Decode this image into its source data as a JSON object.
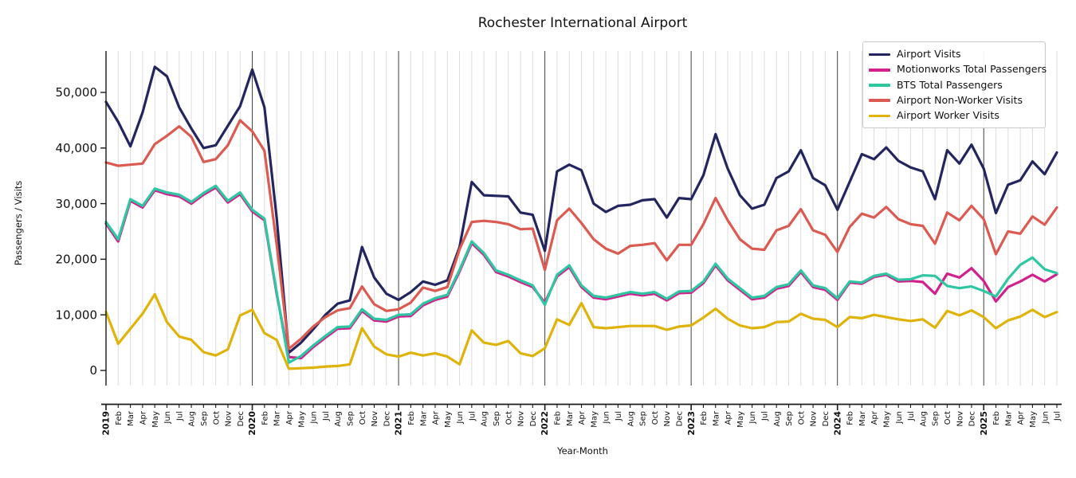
{
  "title": "Rochester International Airport",
  "axes": {
    "xlabel": "Year-Month",
    "ylabel": "Passengers / Visits",
    "y_tick_labels": [
      "0",
      "10,000",
      "20,000",
      "30,000",
      "40,000",
      "50,000"
    ],
    "y_tick_values": [
      0,
      10000,
      20000,
      30000,
      40000,
      50000
    ]
  },
  "chart_data": {
    "type": "line",
    "title": "Rochester International Airport",
    "xlabel": "Year-Month",
    "ylabel": "Passengers / Visits",
    "ylim": [
      0,
      57000
    ],
    "grid": {
      "vertical_month_lines": true,
      "year_boundary_lines": true,
      "horizontal_lines": false
    },
    "legend_position": "upper right",
    "x_labels": [
      "2019",
      "Feb",
      "Mar",
      "Apr",
      "May",
      "Jun",
      "Jul",
      "Aug",
      "Sep",
      "Oct",
      "Nov",
      "Dec",
      "2020",
      "Feb",
      "Mar",
      "Apr",
      "May",
      "Jun",
      "Jul",
      "Aug",
      "Sep",
      "Oct",
      "Nov",
      "Dec",
      "2021",
      "Feb",
      "Mar",
      "Apr",
      "May",
      "Jun",
      "Jul",
      "Aug",
      "Sep",
      "Oct",
      "Nov",
      "Dec",
      "2022",
      "Feb",
      "Mar",
      "Apr",
      "May",
      "Jun",
      "Jul",
      "Aug",
      "Sep",
      "Oct",
      "Nov",
      "Dec",
      "2023",
      "Feb",
      "Mar",
      "Apr",
      "May",
      "Jun",
      "Jul",
      "Aug",
      "Sep",
      "Oct",
      "Nov",
      "Dec",
      "2024",
      "Feb",
      "Mar",
      "Apr",
      "May",
      "Jun",
      "Jul",
      "Aug",
      "Sep",
      "Oct",
      "Nov",
      "Dec",
      "2025",
      "Feb",
      "Mar",
      "Apr",
      "May",
      "Jun",
      "Jul"
    ],
    "series": [
      {
        "name": "Airport Visits",
        "color": "#23265e",
        "values": [
          48300,
          44700,
          40300,
          46400,
          54600,
          52900,
          47300,
          43500,
          40000,
          40500,
          44000,
          47500,
          54100,
          47300,
          27500,
          3200,
          5000,
          7400,
          10000,
          12000,
          12600,
          22200,
          16700,
          13800,
          12700,
          14100,
          16000,
          15400,
          16200,
          22200,
          33900,
          31500,
          31400,
          31300,
          28400,
          28000,
          21500,
          35800,
          37000,
          36000,
          30000,
          28500,
          29600,
          29800,
          30600,
          30800,
          27500,
          31000,
          30800,
          35100,
          42500,
          36300,
          31500,
          29100,
          29800,
          34600,
          35800,
          39600,
          34600,
          33300,
          28900,
          33900,
          38900,
          38000,
          40100,
          37700,
          36500,
          35800,
          30800,
          39600,
          37200,
          40600,
          36300,
          28300,
          33400,
          34200,
          37600,
          35300,
          39200
        ]
      },
      {
        "name": "Motionworks Total Passengers",
        "color": "#d1218f",
        "values": [
          26400,
          23200,
          30500,
          29300,
          32400,
          31700,
          31300,
          30000,
          31600,
          32900,
          30200,
          31700,
          28600,
          27000,
          13800,
          2400,
          2200,
          4200,
          5900,
          7500,
          7600,
          10700,
          9000,
          8800,
          9700,
          9800,
          11700,
          12700,
          13300,
          17800,
          22900,
          20800,
          17700,
          16900,
          15900,
          15000,
          12200,
          16900,
          18600,
          15000,
          13100,
          12800,
          13300,
          13800,
          13500,
          13800,
          12600,
          13900,
          14000,
          15700,
          18900,
          16200,
          14500,
          12800,
          13100,
          14700,
          15200,
          17700,
          15000,
          14500,
          12700,
          15800,
          15600,
          16800,
          17200,
          16000,
          16100,
          15900,
          13800,
          17400,
          16700,
          18400,
          16100,
          12400,
          15000,
          16000,
          17200,
          16000,
          17300
        ]
      },
      {
        "name": "BTS Total Passengers",
        "color": "#2fc6a2",
        "values": [
          26700,
          23600,
          30800,
          29600,
          32700,
          32000,
          31600,
          30300,
          31900,
          33200,
          30500,
          32000,
          28900,
          27300,
          14100,
          1400,
          2600,
          4500,
          6200,
          7800,
          7900,
          11000,
          9300,
          9100,
          10000,
          10100,
          12000,
          13000,
          13600,
          18100,
          23200,
          21100,
          18000,
          17200,
          16200,
          15300,
          11800,
          17200,
          18900,
          15300,
          13400,
          13100,
          13600,
          14100,
          13800,
          14100,
          12900,
          14200,
          14300,
          16000,
          19200,
          16500,
          14800,
          13100,
          13400,
          15000,
          15500,
          18000,
          15300,
          14800,
          13000,
          16000,
          15800,
          17000,
          17400,
          16300,
          16400,
          17100,
          17000,
          15200,
          14800,
          15100,
          14300,
          13300,
          16500,
          19000,
          20300,
          18200,
          17500
        ]
      },
      {
        "name": "Airport Non-Worker Visits",
        "color": "#db5a51",
        "values": [
          37400,
          36800,
          37000,
          37200,
          40700,
          42200,
          43900,
          42000,
          37500,
          38000,
          40500,
          45000,
          43000,
          39500,
          22700,
          3900,
          5700,
          7900,
          9600,
          10800,
          11200,
          15100,
          11900,
          10700,
          11000,
          12200,
          14900,
          14300,
          15000,
          21800,
          26700,
          26900,
          26700,
          26300,
          25400,
          25500,
          18100,
          27000,
          29100,
          26500,
          23600,
          21900,
          21000,
          22400,
          22600,
          22900,
          19800,
          22600,
          22600,
          26300,
          31000,
          27000,
          23600,
          21900,
          21700,
          25200,
          26000,
          29000,
          25200,
          24400,
          21300,
          25800,
          28200,
          27500,
          29400,
          27200,
          26300,
          26000,
          22800,
          28400,
          27000,
          29600,
          27200,
          20900,
          25000,
          24600,
          27700,
          26200,
          29300
        ]
      },
      {
        "name": "Airport Worker Visits",
        "color": "#dfb30a",
        "values": [
          10500,
          4800,
          7500,
          10200,
          13700,
          8700,
          6100,
          5500,
          3300,
          2700,
          3800,
          9900,
          10900,
          6700,
          5500,
          300,
          400,
          500,
          700,
          800,
          1100,
          7600,
          4300,
          2900,
          2500,
          3200,
          2700,
          3100,
          2500,
          1100,
          7200,
          5000,
          4600,
          5300,
          3100,
          2600,
          4000,
          9200,
          8200,
          12100,
          7800,
          7600,
          7800,
          8000,
          8000,
          8000,
          7300,
          7900,
          8100,
          9500,
          11100,
          9300,
          8100,
          7600,
          7800,
          8700,
          8800,
          10200,
          9300,
          9100,
          7800,
          9600,
          9400,
          10000,
          9600,
          9200,
          8900,
          9200,
          7700,
          10700,
          9900,
          10800,
          9600,
          7600,
          9000,
          9700,
          10900,
          9600,
          10500
        ]
      }
    ]
  }
}
